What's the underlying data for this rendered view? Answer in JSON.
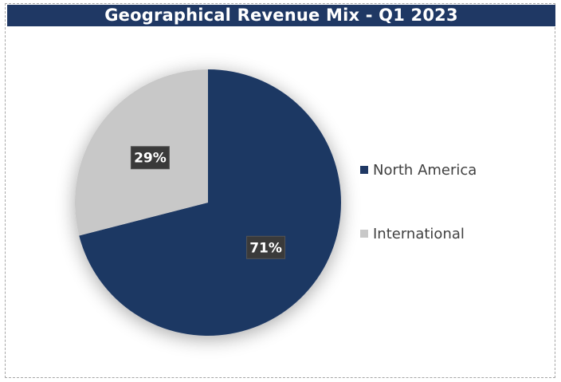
{
  "chart_data": {
    "type": "pie",
    "title": "Geographical Revenue Mix - Q1 2023",
    "categories": [
      "North America",
      "International"
    ],
    "values": [
      71,
      29
    ],
    "data_labels": [
      "71%",
      "29%"
    ],
    "colors": [
      "#1f3864",
      "#c8c8c8"
    ],
    "title_bar_color": "#1f3864",
    "legend_position": "right"
  }
}
